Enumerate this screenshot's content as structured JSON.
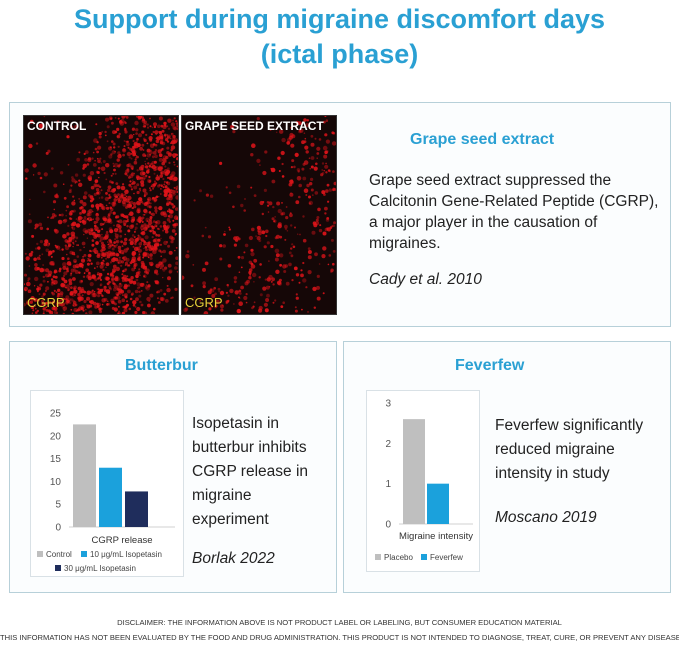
{
  "title_line1": "Support during migraine discomfort days",
  "title_line2": "(ictal phase)",
  "grape": {
    "label_control": "CONTROL",
    "label_treated": "GRAPE SEED EXTRACT",
    "marker_control": "CGRP",
    "marker_treated": "CGRP",
    "heading": "Grape seed extract",
    "description": "Grape seed extract suppressed the Calcitonin Gene-Related Peptide (CGRP), a major player in the causation of migraines.",
    "citation": "Cady et al. 2010"
  },
  "butterbur": {
    "heading": "Butterbur",
    "description": "Isopetasin in butterbur inhibits CGRP release in migraine experiment",
    "citation": "Borlak 2022"
  },
  "feverfew": {
    "heading": "Feverfew",
    "description": "Feverfew significantly reduced migraine intensity in study",
    "citation": "Moscano 2019"
  },
  "disclaimer": {
    "line1": "DISCLAIMER: THE INFORMATION ABOVE IS NOT PRODUCT LABEL OR LABELING, BUT CONSUMER EDUCATION MATERIAL",
    "line2": "THIS INFORMATION HAS NOT BEEN EVALUATED BY THE FOOD AND DRUG ADMINISTRATION. THIS PRODUCT IS NOT INTENDED TO DIAGNOSE, TREAT, CURE, OR PREVENT ANY DISEASE"
  },
  "colors": {
    "accent": "#2aa0d3",
    "control": "#bfbfbf",
    "low_dose": "#1ba1dc",
    "high_dose": "#1f2d5c",
    "stain": "#e0141a"
  },
  "chart_data": [
    {
      "type": "bar",
      "xlabel": "CGRP release",
      "categories": [
        ""
      ],
      "ylim": [
        0,
        25
      ],
      "yticks": [
        0,
        5,
        10,
        15,
        20,
        25
      ],
      "series": [
        {
          "name": "Control",
          "values": [
            22.5
          ],
          "color": "#bfbfbf"
        },
        {
          "name": "10 μg/mL Isopetasin",
          "values": [
            13
          ],
          "color": "#1ba1dc"
        },
        {
          "name": "30 μg/mL Isopetasin",
          "values": [
            7.8
          ],
          "color": "#1f2d5c"
        }
      ],
      "legend_position": "bottom",
      "grid": false
    },
    {
      "type": "bar",
      "xlabel": "Migraine intensity",
      "categories": [
        ""
      ],
      "ylim": [
        0,
        3
      ],
      "yticks": [
        0,
        1,
        2,
        3
      ],
      "series": [
        {
          "name": "Placebo",
          "values": [
            2.6
          ],
          "color": "#bfbfbf"
        },
        {
          "name": "Feverfew",
          "values": [
            1.0
          ],
          "color": "#1ba1dc"
        }
      ],
      "legend_position": "bottom",
      "grid": false
    }
  ]
}
